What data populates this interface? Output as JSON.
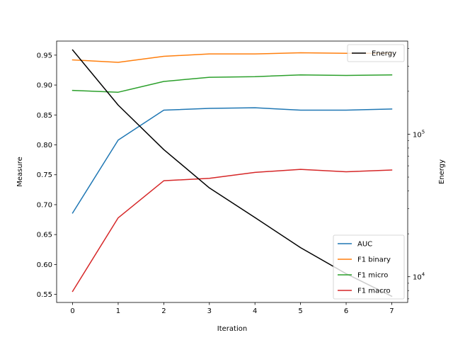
{
  "chart_data": {
    "type": "line",
    "title": "",
    "x": [
      0,
      1,
      2,
      3,
      4,
      5,
      6,
      7
    ],
    "xlabel": "Iteration",
    "xlim": [
      -0.35,
      7.35
    ],
    "xticks": [
      "0",
      "1",
      "2",
      "3",
      "4",
      "5",
      "6",
      "7"
    ],
    "ylabel": "Measure",
    "ylim": [
      0.5365,
      0.9735
    ],
    "yticks": [
      "0.55",
      "0.60",
      "0.65",
      "0.70",
      "0.75",
      "0.80",
      "0.85",
      "0.90",
      "0.95"
    ],
    "y2label": "Energy",
    "y2scale": "log",
    "y2lim": [
      6600,
      450000
    ],
    "y2ticks": [
      {
        "value": 10000,
        "base": "10",
        "exp": "4"
      },
      {
        "value": 100000,
        "base": "10",
        "exp": "5"
      }
    ],
    "grid": false,
    "series": [
      {
        "name": "AUC",
        "axis": "left",
        "color": "#1f77b4",
        "values": [
          0.686,
          0.808,
          0.858,
          0.861,
          0.862,
          0.858,
          0.858,
          0.86
        ]
      },
      {
        "name": "F1 binary",
        "axis": "left",
        "color": "#ff7f0e",
        "values": [
          0.942,
          0.938,
          0.948,
          0.952,
          0.952,
          0.954,
          0.953,
          0.953
        ]
      },
      {
        "name": "F1 micro",
        "axis": "left",
        "color": "#2ca02c",
        "values": [
          0.891,
          0.888,
          0.906,
          0.913,
          0.914,
          0.917,
          0.916,
          0.917
        ]
      },
      {
        "name": "F1 macro",
        "axis": "left",
        "color": "#d62728",
        "values": [
          0.555,
          0.678,
          0.74,
          0.744,
          0.754,
          0.759,
          0.755,
          0.758
        ]
      },
      {
        "name": "Energy",
        "axis": "right",
        "color": "#000000",
        "values": [
          390000,
          160000,
          78000,
          42000,
          26000,
          16000,
          10500,
          7300
        ]
      }
    ],
    "legends": [
      {
        "placement": "upper-right",
        "entries": [
          "Energy"
        ]
      },
      {
        "placement": "lower-right",
        "entries": [
          "AUC",
          "F1 binary",
          "F1 micro",
          "F1 macro"
        ]
      }
    ]
  }
}
